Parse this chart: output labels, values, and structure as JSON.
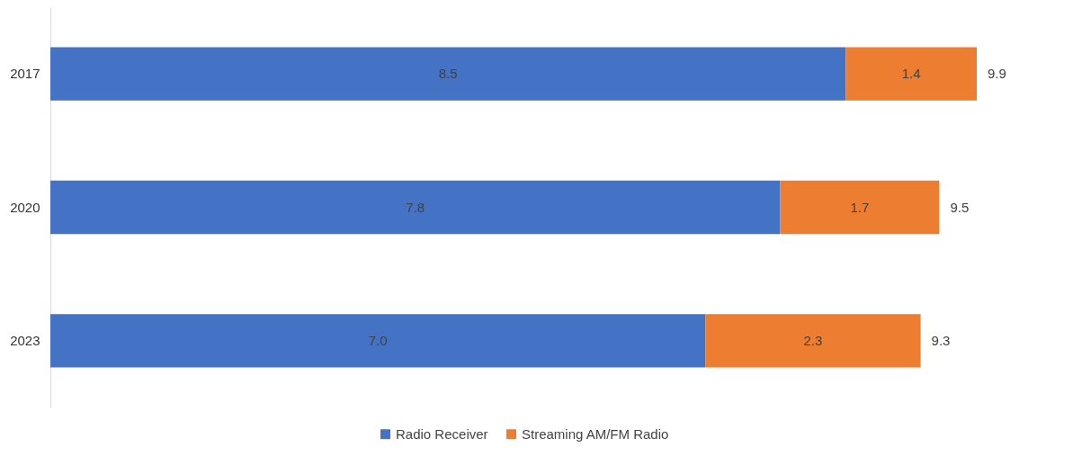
{
  "chart_data": {
    "type": "bar",
    "orientation": "horizontal",
    "stacked": true,
    "categories": [
      "2017",
      "2020",
      "2023"
    ],
    "series": [
      {
        "name": "Radio Receiver",
        "color": "#4472c4",
        "values": [
          8.5,
          7.8,
          7.0
        ],
        "value_labels": [
          "8.5",
          "7.8",
          "7.0"
        ]
      },
      {
        "name": "Streaming AM/FM Radio",
        "color": "#ed7d31",
        "values": [
          1.4,
          1.7,
          2.3
        ],
        "value_labels": [
          "1.4",
          "1.7",
          "2.3"
        ]
      }
    ],
    "totals": [
      "9.9",
      "9.5",
      "9.3"
    ],
    "legend": "bottom",
    "tick_labels": "y"
  }
}
